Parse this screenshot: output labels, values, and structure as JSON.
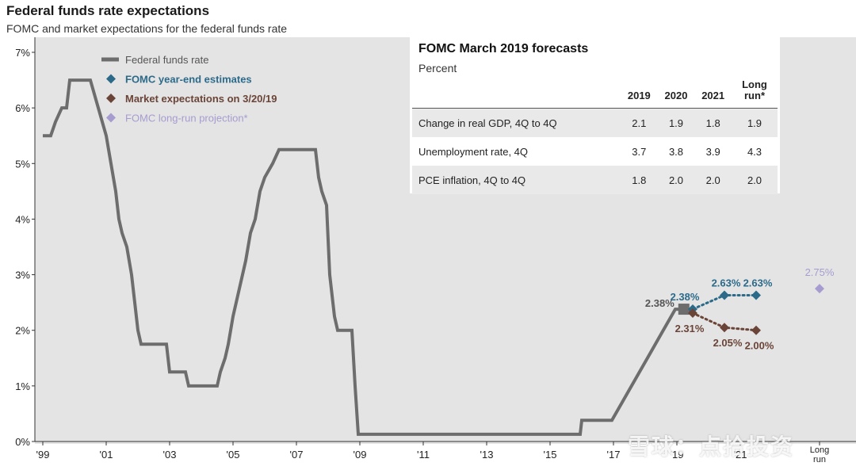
{
  "header": {
    "title": "Federal funds rate expectations",
    "subtitle": "FOMC and market expectations for the federal funds rate"
  },
  "colors": {
    "background": "#e4e4e4",
    "fed_funds": "#6d6d6e",
    "fomc_year_end": "#2c6a8a",
    "market": "#6b4438",
    "long_run": "#a79cd0"
  },
  "chart_data": {
    "type": "line",
    "y_ticks": [
      "0%",
      "1%",
      "2%",
      "3%",
      "4%",
      "5%",
      "6%",
      "7%"
    ],
    "x_ticks": [
      "'99",
      "'01",
      "'03",
      "'05",
      "'07",
      "'09",
      "'11",
      "'13",
      "'15",
      "'17",
      "'19",
      "'21",
      "Long run"
    ],
    "ylim": [
      0,
      7
    ],
    "legend_position": "top-left",
    "grid": false,
    "legend": [
      "Federal funds rate",
      "FOMC year-end estimates",
      "Market expectations on 3/20/19",
      "FOMC long-run projection*"
    ],
    "series": [
      {
        "name": "Federal funds rate",
        "points": [
          [
            1999.0,
            5.5
          ],
          [
            1999.25,
            5.5
          ],
          [
            1999.4,
            5.75
          ],
          [
            1999.6,
            6.0
          ],
          [
            1999.75,
            6.0
          ],
          [
            1999.85,
            6.5
          ],
          [
            2000.5,
            6.5
          ],
          [
            2001.0,
            5.5
          ],
          [
            2001.15,
            5.0
          ],
          [
            2001.3,
            4.5
          ],
          [
            2001.4,
            4.0
          ],
          [
            2001.5,
            3.75
          ],
          [
            2001.65,
            3.5
          ],
          [
            2001.8,
            3.0
          ],
          [
            2001.9,
            2.5
          ],
          [
            2002.0,
            2.0
          ],
          [
            2002.1,
            1.75
          ],
          [
            2002.9,
            1.75
          ],
          [
            2003.0,
            1.25
          ],
          [
            2003.5,
            1.25
          ],
          [
            2003.6,
            1.0
          ],
          [
            2004.5,
            1.0
          ],
          [
            2004.6,
            1.25
          ],
          [
            2004.75,
            1.5
          ],
          [
            2004.85,
            1.75
          ],
          [
            2005.0,
            2.25
          ],
          [
            2005.2,
            2.75
          ],
          [
            2005.4,
            3.25
          ],
          [
            2005.55,
            3.75
          ],
          [
            2005.7,
            4.0
          ],
          [
            2005.85,
            4.5
          ],
          [
            2006.0,
            4.75
          ],
          [
            2006.25,
            5.0
          ],
          [
            2006.45,
            5.25
          ],
          [
            2007.6,
            5.25
          ],
          [
            2007.7,
            4.75
          ],
          [
            2007.8,
            4.5
          ],
          [
            2007.95,
            4.25
          ],
          [
            2008.05,
            3.0
          ],
          [
            2008.2,
            2.25
          ],
          [
            2008.3,
            2.0
          ],
          [
            2008.75,
            2.0
          ],
          [
            2008.85,
            1.0
          ],
          [
            2008.95,
            0.13
          ],
          [
            2015.95,
            0.13
          ],
          [
            2016.0,
            0.38
          ],
          [
            2016.95,
            0.38
          ],
          [
            2017.2,
            0.63
          ],
          [
            2017.45,
            0.88
          ],
          [
            2017.7,
            1.13
          ],
          [
            2017.95,
            1.38
          ],
          [
            2018.2,
            1.63
          ],
          [
            2018.45,
            1.88
          ],
          [
            2018.7,
            2.13
          ],
          [
            2018.95,
            2.38
          ],
          [
            2019.22,
            2.38
          ]
        ]
      },
      {
        "name": "FOMC year-end estimates",
        "points": [
          [
            2019.22,
            2.38
          ],
          [
            2019.5,
            2.38
          ],
          [
            2020.5,
            2.63
          ],
          [
            2021.5,
            2.63
          ]
        ],
        "labels": [
          "",
          "2.38%",
          "2.63%",
          "2.63%"
        ]
      },
      {
        "name": "Market expectations on 3/20/19",
        "points": [
          [
            2019.22,
            2.38
          ],
          [
            2019.5,
            2.31
          ],
          [
            2020.5,
            2.05
          ],
          [
            2021.5,
            2.0
          ]
        ],
        "labels": [
          "",
          "2.31%",
          "2.05%",
          "2.00%"
        ]
      },
      {
        "name": "FOMC long-run projection*",
        "points": [
          [
            2023.5,
            2.75
          ]
        ],
        "labels": [
          "2.75%"
        ]
      }
    ],
    "current_label": "2.38%"
  },
  "forecast_table": {
    "title": "FOMC March 2019 forecasts",
    "subtitle": "Percent",
    "columns": [
      "2019",
      "2020",
      "2021",
      "Long run*"
    ],
    "rows": [
      {
        "label": "Change in real GDP, 4Q to 4Q",
        "values": [
          "2.1",
          "1.9",
          "1.8",
          "1.9"
        ]
      },
      {
        "label": "Unemployment rate, 4Q",
        "values": [
          "3.7",
          "3.8",
          "3.9",
          "4.3"
        ]
      },
      {
        "label": "PCE inflation, 4Q to 4Q",
        "values": [
          "1.8",
          "2.0",
          "2.0",
          "2.0"
        ]
      }
    ]
  },
  "watermark": "雪球：点拾投资"
}
